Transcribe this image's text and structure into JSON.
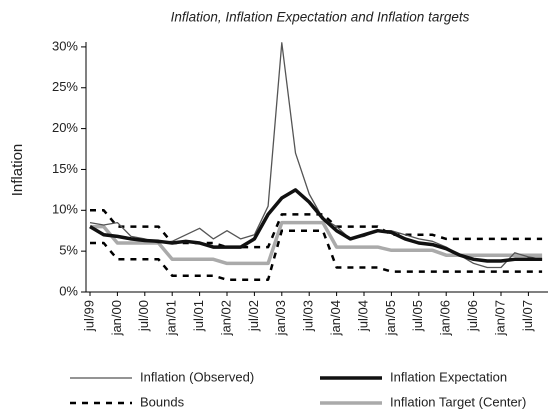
{
  "chart_data": {
    "type": "line",
    "title": "Inflation, Inflation Expectation and Inflation targets",
    "ylabel": "Inflation",
    "categories": [
      "jul/99",
      null,
      "jan/00",
      null,
      "jul/00",
      null,
      "jan/01",
      null,
      "jul/01",
      null,
      "jan/02",
      null,
      "jul/02",
      null,
      "jan/03",
      null,
      "jul/03",
      null,
      "jan/04",
      null,
      "jul/04",
      null,
      "jan/05",
      null,
      "jul/05",
      null,
      "jan/06",
      null,
      "jul/06",
      null,
      "jan/07",
      null,
      "jul/07",
      null
    ],
    "ylim": [
      0,
      30.6
    ],
    "yticks": [
      {
        "value": 0,
        "label": "0%"
      },
      {
        "value": 5,
        "label": "5%"
      },
      {
        "value": 10,
        "label": "10%"
      },
      {
        "value": 15,
        "label": "15%"
      },
      {
        "value": 20,
        "label": "20%"
      },
      {
        "value": 25,
        "label": "25%"
      },
      {
        "value": 30,
        "label": "30%"
      }
    ],
    "series": [
      {
        "name": "Inflation (Observed)",
        "color": "#555555",
        "width": 1.3,
        "values": [
          8.5,
          8.2,
          8.5,
          6.8,
          6.5,
          6.0,
          6.2,
          7.0,
          7.8,
          6.5,
          7.5,
          6.5,
          7.0,
          10.5,
          30.5,
          17,
          12,
          9,
          8,
          6.5,
          6.8,
          7.5,
          7.5,
          7.0,
          6.5,
          6.2,
          5.5,
          4.5,
          3.5,
          3.0,
          3.0,
          4.8,
          4.3,
          4.0
        ]
      },
      {
        "name": "Inflation Expectation",
        "color": "#111111",
        "width": 3.5,
        "values": [
          8.0,
          7.0,
          6.8,
          6.5,
          6.3,
          6.2,
          6.0,
          6.2,
          6.0,
          5.5,
          5.5,
          5.5,
          6.5,
          9.5,
          11.5,
          12.5,
          11.0,
          9.0,
          7.5,
          6.5,
          7.0,
          7.5,
          7.3,
          6.5,
          6.0,
          5.8,
          5.3,
          4.5,
          4.0,
          3.8,
          3.8,
          4.0,
          4.0,
          4.0
        ]
      },
      {
        "name": "Bounds",
        "color": "#000000",
        "width": 2.5,
        "dashed": true,
        "upper": [
          10,
          10,
          8,
          8,
          8,
          8,
          6,
          6,
          6,
          6,
          5.5,
          5.5,
          5.5,
          5.5,
          9.5,
          9.5,
          9.5,
          9.5,
          8,
          8,
          8,
          8,
          7,
          7,
          7,
          7,
          6.5,
          6.5,
          6.5,
          6.5,
          6.5,
          6.5,
          6.5,
          6.5
        ],
        "lower": [
          6,
          6,
          4,
          4,
          4,
          4,
          2,
          2,
          2,
          2,
          1.5,
          1.5,
          1.5,
          1.5,
          7.5,
          7.5,
          7.5,
          7.5,
          3,
          3,
          3,
          3,
          2.5,
          2.5,
          2.5,
          2.5,
          2.5,
          2.5,
          2.5,
          2.5,
          2.5,
          2.5,
          2.5,
          2.5
        ]
      },
      {
        "name": "Inflation Target (Center)",
        "color": "#aaaaaa",
        "width": 3.5,
        "values": [
          8,
          8,
          6,
          6,
          6,
          6,
          4,
          4,
          4,
          4,
          3.5,
          3.5,
          3.5,
          3.5,
          8.5,
          8.5,
          8.5,
          8.5,
          5.5,
          5.5,
          5.5,
          5.5,
          5.1,
          5.1,
          5.1,
          5.1,
          4.5,
          4.5,
          4.5,
          4.5,
          4.5,
          4.5,
          4.5,
          4.5
        ]
      }
    ]
  }
}
